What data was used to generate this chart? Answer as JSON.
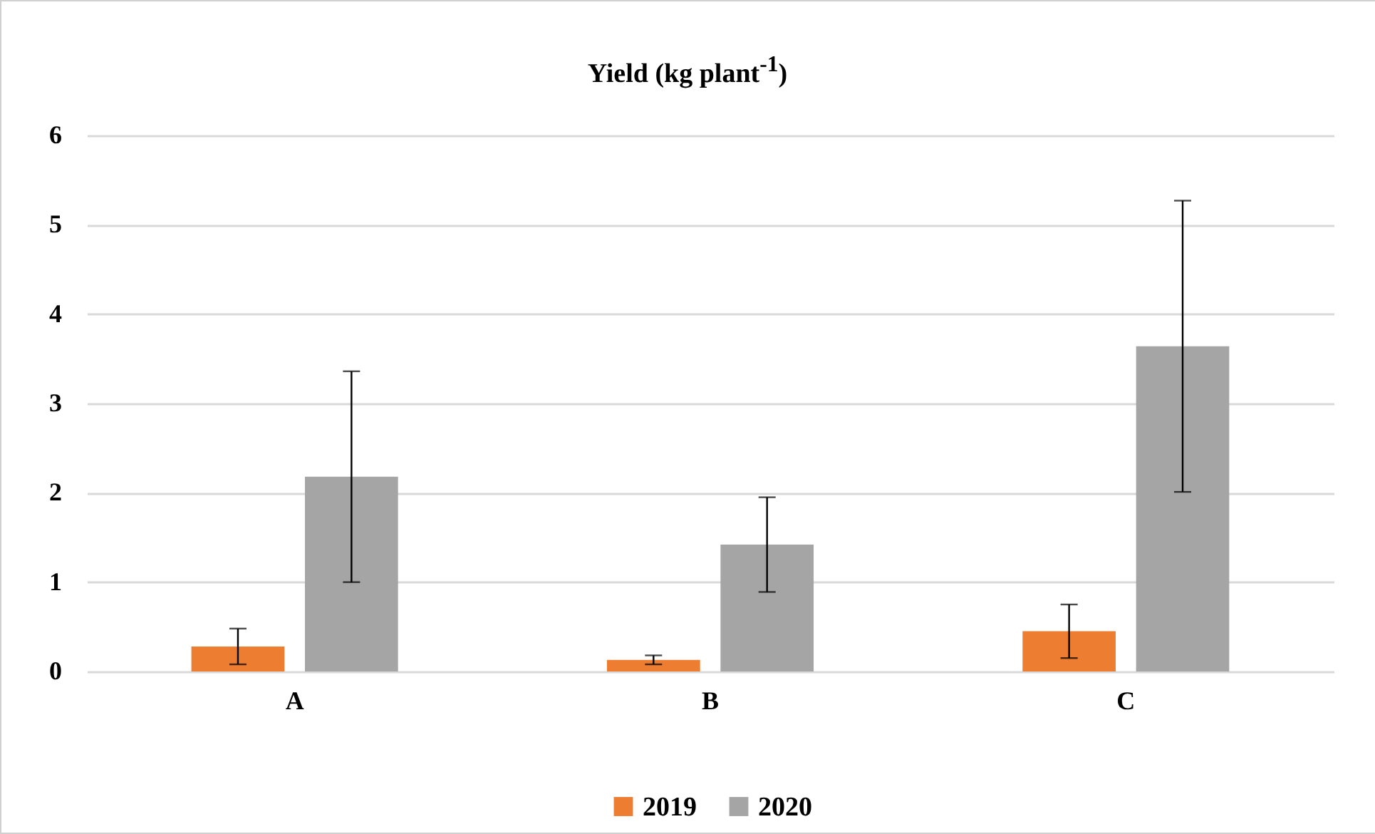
{
  "chart_data": {
    "type": "bar",
    "title": "Yield (kg plant$^{-1}$)",
    "categories": [
      "A",
      "B",
      "C"
    ],
    "series": [
      {
        "name": "2019",
        "color": "#ed7d31",
        "values": [
          0.28,
          0.13,
          0.45
        ],
        "errors": [
          0.2,
          0.05,
          0.3
        ]
      },
      {
        "name": "2020",
        "color": "#a5a5a5",
        "values": [
          2.18,
          1.42,
          3.64
        ],
        "errors": [
          1.18,
          0.53,
          1.63
        ]
      }
    ],
    "ylim": [
      0,
      6
    ],
    "yticks": [
      0,
      1,
      2,
      3,
      4,
      5,
      6
    ],
    "grid": "y",
    "legend": "bottom"
  }
}
